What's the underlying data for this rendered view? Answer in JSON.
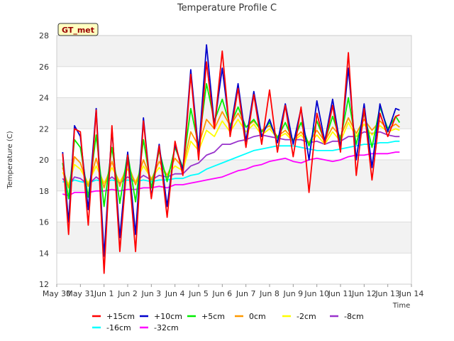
{
  "chart_data": {
    "type": "line",
    "title": "Temperature Profile C",
    "xlabel": "Time",
    "ylabel": "Temperature (C)",
    "badge": "GT_met",
    "xlim": [
      "2000-05-30",
      "2000-06-14"
    ],
    "ylim": [
      12,
      28
    ],
    "x_ticks": [
      "May 30",
      "May 31",
      "Jun 1",
      "Jun 2",
      "Jun 3",
      "Jun 4",
      "Jun 5",
      "Jun 6",
      "Jun 7",
      "Jun 8",
      "Jun 9",
      "Jun 10",
      "Jun 11",
      "Jun 12",
      "Jun 13",
      "Jun 14"
    ],
    "y_ticks": [
      12,
      14,
      16,
      18,
      20,
      22,
      24,
      26,
      28
    ],
    "grid": true,
    "legend_position": "bottom",
    "x_dates": [
      "2000-05-30",
      "2000-05-30",
      "2000-05-30",
      "2000-05-31",
      "2000-05-31",
      "2000-05-31",
      "2000-06-01",
      "2000-06-01",
      "2000-06-01",
      "2000-06-02",
      "2000-06-02",
      "2000-06-02",
      "2000-06-03",
      "2000-06-03",
      "2000-06-03",
      "2000-06-04",
      "2000-06-04",
      "2000-06-04",
      "2000-06-05",
      "2000-06-05",
      "2000-06-05",
      "2000-06-06",
      "2000-06-06",
      "2000-06-06",
      "2000-06-07",
      "2000-06-07",
      "2000-06-07",
      "2000-06-08",
      "2000-06-08",
      "2000-06-08",
      "2000-06-09",
      "2000-06-09",
      "2000-06-09",
      "2000-06-10",
      "2000-06-10",
      "2000-06-10",
      "2000-06-11",
      "2000-06-11",
      "2000-06-11",
      "2000-06-12",
      "2000-06-12",
      "2000-06-12",
      "2000-06-13",
      "2000-06-13",
      "2000-06-13"
    ],
    "x_times": [
      "06:00",
      "12:00",
      "18:00",
      "00:00",
      "08:00",
      "16:00",
      "00:00",
      "08:00",
      "16:00",
      "00:00",
      "08:00",
      "16:00",
      "00:00",
      "08:00",
      "16:00",
      "00:00",
      "08:00",
      "16:00",
      "00:00",
      "08:00",
      "16:00",
      "00:00",
      "08:00",
      "16:00",
      "00:00",
      "08:00",
      "16:00",
      "00:00",
      "08:00",
      "16:00",
      "00:00",
      "08:00",
      "16:00",
      "00:00",
      "08:00",
      "16:00",
      "00:00",
      "08:00",
      "16:00",
      "00:00",
      "08:00",
      "16:00",
      "00:00",
      "08:00",
      "12:00"
    ],
    "series": [
      {
        "name": "+15cm",
        "color": "#ff0000",
        "values": [
          20.4,
          15.2,
          22.0,
          21.8,
          15.8,
          23.2,
          12.7,
          22.2,
          14.1,
          20.3,
          14.1,
          22.5,
          17.5,
          20.9,
          16.3,
          21.2,
          19.0,
          25.5,
          20.0,
          26.3,
          22.0,
          27.0,
          21.5,
          24.6,
          20.8,
          24.2,
          21.0,
          24.5,
          20.5,
          23.5,
          20.2,
          23.4,
          17.9,
          23.0,
          21.0,
          23.5,
          20.5,
          26.9,
          19.0,
          23.3,
          18.7,
          23.0,
          21.5,
          22.8,
          22.9
        ]
      },
      {
        "name": "+10cm",
        "color": "#0000cc",
        "values": [
          20.5,
          16.0,
          22.2,
          21.5,
          16.8,
          23.3,
          13.8,
          22.0,
          15.0,
          20.5,
          15.2,
          22.7,
          17.6,
          21.0,
          17.0,
          21.0,
          19.3,
          25.8,
          20.5,
          27.4,
          22.2,
          25.9,
          21.8,
          24.9,
          21.2,
          24.4,
          21.5,
          22.6,
          21.1,
          23.6,
          21.0,
          23.3,
          20.0,
          23.8,
          21.2,
          23.9,
          20.8,
          25.9,
          20.0,
          23.6,
          19.5,
          23.6,
          21.8,
          23.3,
          23.2
        ]
      },
      {
        "name": "+5cm",
        "color": "#00ee00",
        "values": [
          19.8,
          17.5,
          21.3,
          20.8,
          17.6,
          21.6,
          17.0,
          20.8,
          17.2,
          20.4,
          17.3,
          21.3,
          18.2,
          20.6,
          18.6,
          20.8,
          19.5,
          23.3,
          20.9,
          24.9,
          22.5,
          23.9,
          22.2,
          23.4,
          22.1,
          22.6,
          21.8,
          22.4,
          21.4,
          22.4,
          21.2,
          22.4,
          20.9,
          22.5,
          21.2,
          22.8,
          21.3,
          24.0,
          21.0,
          23.0,
          20.8,
          23.4,
          22.0,
          22.8,
          22.4
        ]
      },
      {
        "name": "0cm",
        "color": "#ff9900",
        "values": [
          19.5,
          18.2,
          20.2,
          19.8,
          18.3,
          20.1,
          18.2,
          19.9,
          18.3,
          19.8,
          18.4,
          20.0,
          18.7,
          19.9,
          19.0,
          20.1,
          19.5,
          21.8,
          20.9,
          22.6,
          22.0,
          23.1,
          22.2,
          23.0,
          22.1,
          22.5,
          21.9,
          22.2,
          21.5,
          21.9,
          21.3,
          21.8,
          21.1,
          21.9,
          21.2,
          22.1,
          21.5,
          22.7,
          21.7,
          22.6,
          21.9,
          22.5,
          22.0,
          22.3,
          22.1
        ]
      },
      {
        "name": "-2cm",
        "color": "#ffff00",
        "values": [
          19.2,
          18.4,
          19.7,
          19.4,
          18.5,
          19.6,
          18.5,
          19.5,
          18.6,
          19.4,
          18.6,
          19.6,
          18.8,
          19.5,
          19.0,
          19.6,
          19.3,
          21.2,
          20.6,
          21.9,
          21.5,
          22.5,
          21.8,
          22.6,
          21.8,
          22.3,
          21.6,
          22.0,
          21.4,
          21.7,
          21.2,
          21.6,
          21.0,
          21.6,
          21.0,
          21.8,
          21.2,
          22.4,
          21.5,
          22.3,
          21.6,
          22.2,
          21.8,
          22.0,
          21.9
        ]
      },
      {
        "name": "-8cm",
        "color": "#9933cc",
        "values": [
          18.8,
          18.3,
          18.9,
          18.8,
          18.4,
          18.9,
          18.5,
          18.9,
          18.5,
          18.9,
          18.6,
          19.0,
          18.7,
          19.0,
          18.9,
          19.1,
          19.1,
          19.6,
          19.8,
          20.3,
          20.5,
          21.0,
          21.0,
          21.2,
          21.3,
          21.5,
          21.6,
          21.5,
          21.4,
          21.3,
          21.3,
          21.3,
          21.1,
          21.2,
          21.0,
          21.2,
          21.2,
          21.5,
          21.5,
          21.8,
          21.7,
          21.8,
          21.6,
          21.5,
          21.5
        ]
      },
      {
        "name": "-16cm",
        "color": "#00ffff",
        "values": [
          18.6,
          18.5,
          18.7,
          18.6,
          18.5,
          18.7,
          18.6,
          18.7,
          18.6,
          18.7,
          18.6,
          18.7,
          18.6,
          18.7,
          18.7,
          18.8,
          18.8,
          19.0,
          19.1,
          19.4,
          19.6,
          19.8,
          20.0,
          20.2,
          20.4,
          20.6,
          20.7,
          20.8,
          20.9,
          20.9,
          20.9,
          20.8,
          20.7,
          20.6,
          20.6,
          20.6,
          20.7,
          20.8,
          20.9,
          21.0,
          21.0,
          21.1,
          21.1,
          21.2,
          21.2
        ]
      },
      {
        "name": "-32cm",
        "color": "#ff00ff",
        "values": [
          17.8,
          17.7,
          17.9,
          17.9,
          17.9,
          18.0,
          18.0,
          18.1,
          18.0,
          18.1,
          18.1,
          18.2,
          18.2,
          18.3,
          18.2,
          18.4,
          18.4,
          18.5,
          18.6,
          18.7,
          18.8,
          18.9,
          19.1,
          19.3,
          19.4,
          19.6,
          19.7,
          19.9,
          20.0,
          20.1,
          19.9,
          19.8,
          20.0,
          20.1,
          20.0,
          19.9,
          20.0,
          20.2,
          20.3,
          20.3,
          20.4,
          20.4,
          20.4,
          20.5,
          20.5
        ]
      }
    ]
  }
}
